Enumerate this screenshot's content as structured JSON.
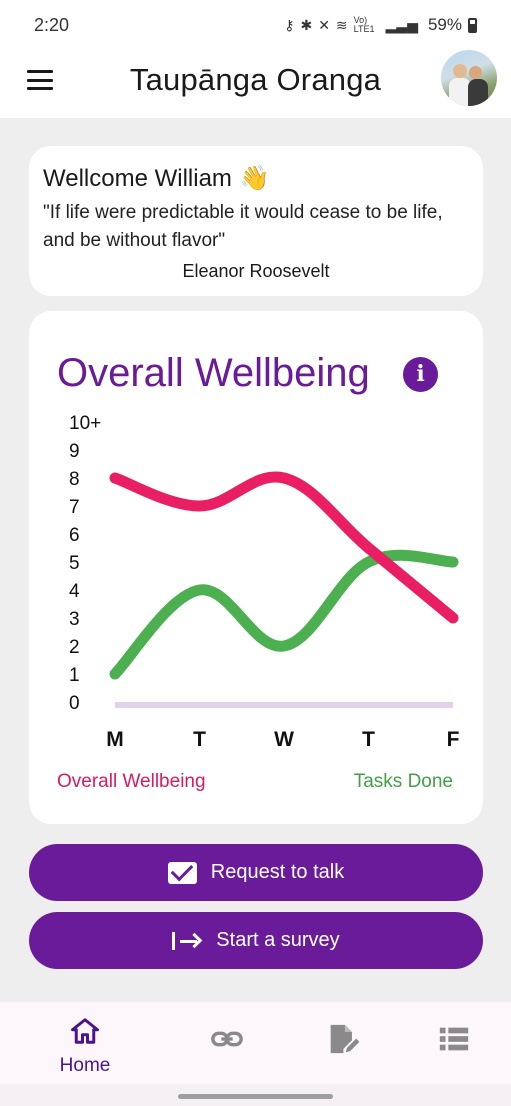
{
  "status_bar": {
    "time": "2:20",
    "signal_text": "Vo) LTE1",
    "battery": "59%"
  },
  "app_bar": {
    "title": "Taupānga Oranga",
    "menu_icon": "hamburger-icon",
    "avatar": "user-avatar"
  },
  "welcome": {
    "title": "Wellcome William",
    "emoji": "👋",
    "quote": "\"If life were predictable it would cease to be life, and be without flavor\"",
    "author": "Eleanor Roosevelt"
  },
  "chart_card": {
    "title": "Overall Wellbeing",
    "info_icon": "i"
  },
  "chart_data": {
    "type": "line",
    "categories": [
      "M",
      "T",
      "W",
      "T",
      "F"
    ],
    "y_ticks": [
      "0",
      "1",
      "2",
      "3",
      "4",
      "5",
      "6",
      "7",
      "8",
      "9",
      "10+"
    ],
    "ylim": [
      0,
      10
    ],
    "series": [
      {
        "name": "Overall Wellbeing",
        "color": "#e91e63",
        "values": [
          8,
          7,
          8,
          5.5,
          3
        ]
      },
      {
        "name": "Tasks Done",
        "color": "#4caf50",
        "values": [
          1,
          4,
          2,
          5,
          5
        ]
      }
    ],
    "grid": false,
    "legend": "bottom"
  },
  "buttons": {
    "request_talk": "Request to talk",
    "start_survey": "Start a survey"
  },
  "bottom_nav": {
    "items": [
      {
        "label": "Home",
        "icon": "home-icon",
        "active": true
      },
      {
        "label": "",
        "icon": "link-icon",
        "active": false
      },
      {
        "label": "",
        "icon": "edit-document-icon",
        "active": false
      },
      {
        "label": "",
        "icon": "list-icon",
        "active": false
      }
    ]
  }
}
